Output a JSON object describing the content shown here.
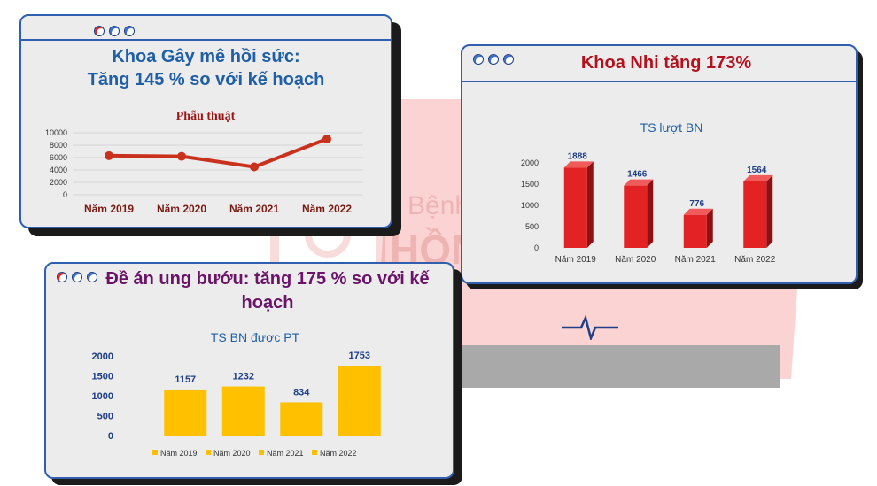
{
  "watermark": {
    "line1": "Bệnh Viện Đa Khoa",
    "line2": "HỒNG ĐỨC"
  },
  "card1": {
    "title_line1": "Khoa Gây mê hồi sức:",
    "title_line2": "Tăng 145 % so với kế hoạch"
  },
  "card2": {
    "title": "Khoa Nhi tăng 173%"
  },
  "card3": {
    "title_line1": "Đề án ung bướu: tăng 175 % so với kế",
    "title_line2": "hoạch"
  },
  "colors": {
    "line": "#c9311d",
    "bars_red": "#e32224",
    "bars_gold": "#ffc000",
    "title_blue": "#1f5fa8",
    "title_red": "#b3121d",
    "title_purple": "#6a1368"
  },
  "chart_data": [
    {
      "type": "line",
      "title": "Phẫu thuật",
      "categories": [
        "Năm 2019",
        "Năm 2020",
        "Năm 2021",
        "Năm 2022"
      ],
      "values": [
        6300,
        6200,
        4500,
        9000
      ],
      "yticks": [
        "10000",
        "8000",
        "6000",
        "4000",
        "2000",
        "0"
      ],
      "ylim": [
        0,
        10000
      ],
      "grid": true
    },
    {
      "type": "bar",
      "title": "TS lượt BN",
      "categories": [
        "Năm 2019",
        "Năm 2020",
        "Năm 2021",
        "Năm 2022"
      ],
      "values": [
        1888,
        1466,
        776,
        1564
      ],
      "yticks": [
        "2000",
        "1500",
        "1000",
        "500",
        "0"
      ],
      "ylim": [
        0,
        2000
      ],
      "style": "3d"
    },
    {
      "type": "bar",
      "title": "TS BN được PT",
      "categories": [
        "Năm 2019",
        "Năm 2020",
        "Năm 2021",
        "Năm 2022"
      ],
      "values": [
        1157,
        1232,
        834,
        1753
      ],
      "yticks": [
        "2000",
        "1500",
        "1000",
        "500",
        "0"
      ],
      "ylim": [
        0,
        2000
      ],
      "legend": "bottom"
    }
  ]
}
